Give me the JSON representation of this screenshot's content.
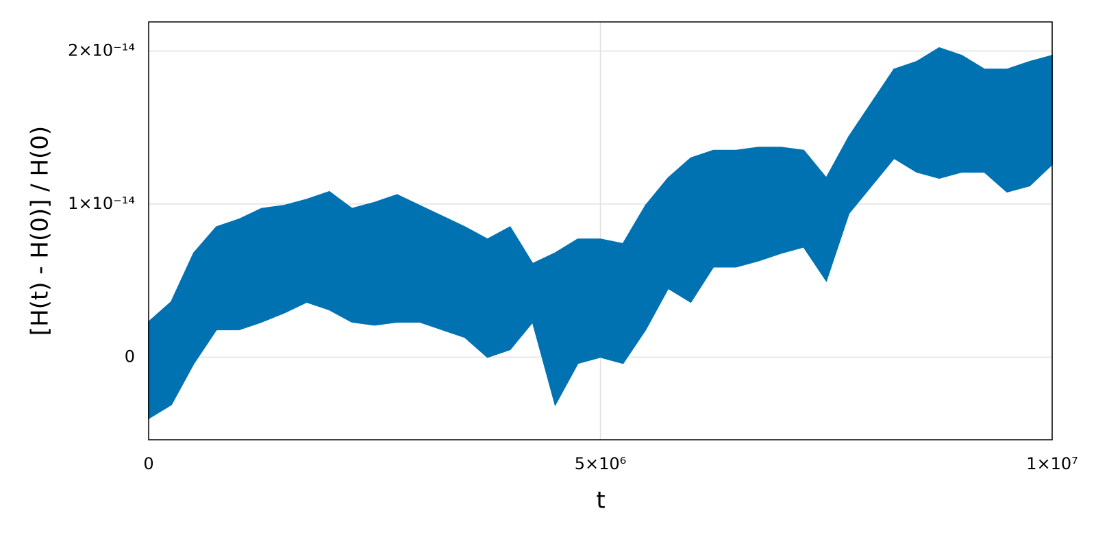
{
  "chart_data": {
    "type": "band",
    "x_label": "t",
    "y_label": "[H(t) - H(0)] / H(0)",
    "color": "#0072b2",
    "grid": true,
    "x": [
      0,
      250000,
      500000,
      750000,
      1000000,
      1250000,
      1500000,
      1750000,
      2000000,
      2250000,
      2500000,
      2750000,
      3000000,
      3250000,
      3500000,
      3750000,
      4000000,
      4250000,
      4500000,
      4750000,
      5000000,
      5250000,
      5500000,
      5750000,
      6000000,
      6250000,
      6500000,
      6750000,
      7000000,
      7250000,
      7500000,
      7750000,
      8000000,
      8250000,
      8500000,
      8750000,
      9000000,
      9250000,
      9500000,
      9750000,
      10000000
    ],
    "upper": [
      2.3e-15,
      3.6e-15,
      6.8e-15,
      8.5e-15,
      9e-15,
      9.7e-15,
      9.9e-15,
      1.03e-14,
      1.08e-14,
      9.7e-15,
      1.01e-14,
      1.06e-14,
      9.9e-15,
      9.2e-15,
      8.5e-15,
      7.7e-15,
      8.5e-15,
      6.1e-15,
      6.8e-15,
      7.7e-15,
      7.7e-15,
      7.4e-15,
      9.9e-15,
      1.17e-14,
      1.3e-14,
      1.35e-14,
      1.35e-14,
      1.37e-14,
      1.37e-14,
      1.35e-14,
      1.17e-14,
      1.44e-14,
      1.66e-14,
      1.88e-14,
      1.93e-14,
      2.02e-14,
      1.97e-14,
      1.88e-14,
      1.88e-14,
      1.93e-14,
      1.97e-14
    ],
    "lower": [
      -4e-15,
      -3.1e-15,
      -4e-16,
      1.8e-15,
      1.8e-15,
      2.3e-15,
      2.9e-15,
      3.6e-15,
      3.1e-15,
      2.3e-15,
      2.1e-15,
      2.3e-15,
      2.3e-15,
      1.8e-15,
      1.3e-15,
      0,
      5e-16,
      2.3e-15,
      -3.1e-15,
      -4e-16,
      0,
      -4e-16,
      1.8e-15,
      4.5e-15,
      3.6e-15,
      5.9e-15,
      5.9e-15,
      6.3e-15,
      6.8e-15,
      7.2e-15,
      5e-15,
      9.4e-15,
      1.12e-14,
      1.3e-14,
      1.21e-14,
      1.17e-14,
      1.21e-14,
      1.21e-14,
      1.08e-14,
      1.12e-14,
      1.26e-14
    ],
    "xlim": [
      0,
      10000000
    ],
    "xticks": [
      0,
      {
        "value": 5000000,
        "label": "5×10⁶"
      },
      {
        "value": 10000000,
        "label": "1×10⁷"
      }
    ],
    "ylim": [
      -5.4e-15,
      2.19e-14
    ],
    "yticks": [
      0,
      {
        "value": 1e-14,
        "label": "1×10⁻¹⁴"
      },
      {
        "value": 2e-14,
        "label": "2×10⁻¹⁴"
      }
    ]
  }
}
